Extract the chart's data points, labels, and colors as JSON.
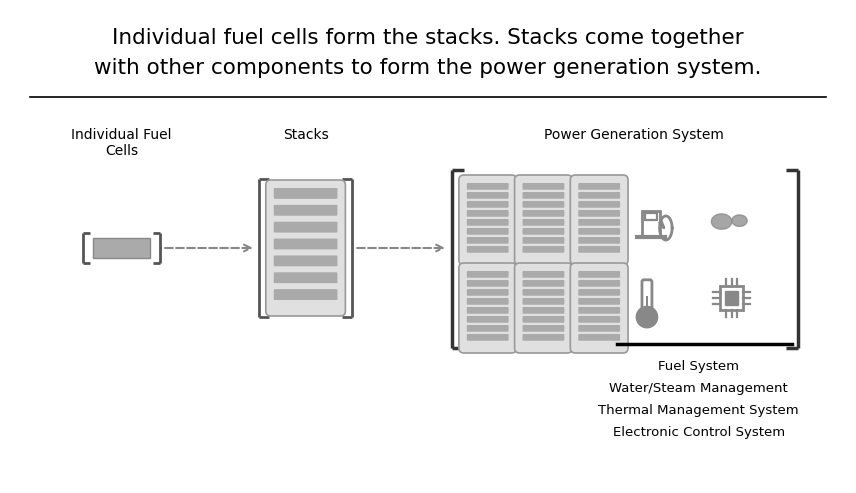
{
  "title_line1": "Individual fuel cells form the stacks. Stacks come together",
  "title_line2": "with other components to form the power generation system.",
  "title_fontsize": 15.5,
  "label_individual": "Individual Fuel\nCells",
  "label_stacks": "Stacks",
  "label_power": "Power Generation System",
  "system_labels": [
    "Fuel System",
    "Water/Steam Management",
    "Thermal Management System",
    "Electronic Control System"
  ],
  "gray_color": "#888888",
  "dark_gray": "#666666",
  "med_gray": "#999999",
  "stripe_color": "#aaaaaa",
  "stripe_bg": "#cccccc",
  "bg_color": "#ffffff",
  "bracket_color": "#555555",
  "arrow_color": "#888888",
  "line_color": "#222222"
}
